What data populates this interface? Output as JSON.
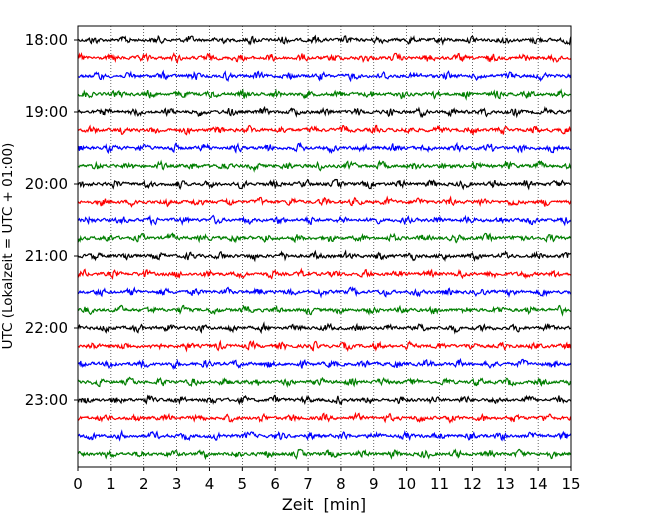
{
  "chart_data": {
    "type": "line",
    "subtype": "helicorder seismogram",
    "xlabel": "Zeit  [min]",
    "ylabel": "UTC (Lokalzeit = UTC + 01:00)",
    "xlim": [
      0,
      15
    ],
    "x_ticks": [
      0,
      1,
      2,
      3,
      4,
      5,
      6,
      7,
      8,
      9,
      10,
      11,
      12,
      13,
      14,
      15
    ],
    "grid": "vertical dotted",
    "row_interval_min": 15,
    "row_colors": [
      "#000000",
      "#ff0000",
      "#0000ff",
      "#007f00"
    ],
    "y_tick_labels": [
      "18:00",
      "19:00",
      "20:00",
      "21:00",
      "22:00",
      "23:00"
    ],
    "rows": [
      "18:00",
      "18:15",
      "18:30",
      "18:45",
      "19:00",
      "19:15",
      "19:30",
      "19:45",
      "20:00",
      "20:15",
      "20:30",
      "20:45",
      "21:00",
      "21:15",
      "21:30",
      "21:45",
      "22:00",
      "22:15",
      "22:30",
      "22:45",
      "23:00",
      "23:15",
      "23:30",
      "23:45"
    ]
  }
}
